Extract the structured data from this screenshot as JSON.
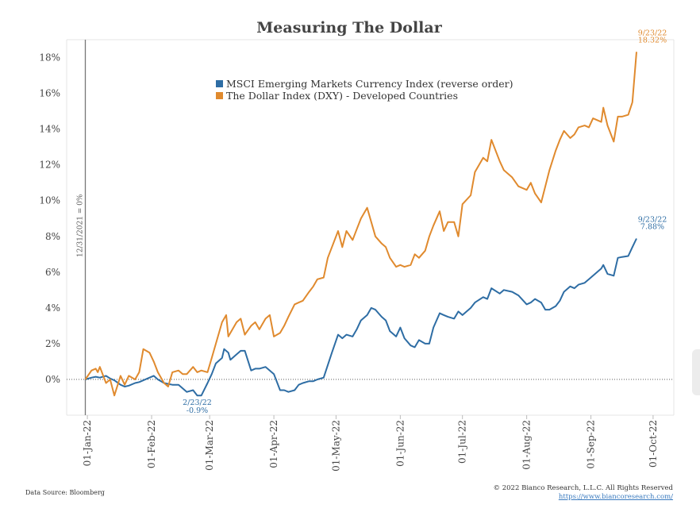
{
  "chart_data": {
    "type": "line",
    "title": "Measuring The Dollar",
    "xlabel": "",
    "ylabel": "",
    "ylim": [
      -2,
      19
    ],
    "y_ticks": [
      "0%",
      "2%",
      "4%",
      "6%",
      "8%",
      "10%",
      "12%",
      "14%",
      "16%",
      "18%"
    ],
    "y_tick_values": [
      0,
      2,
      4,
      6,
      8,
      10,
      12,
      14,
      16,
      18
    ],
    "x_ticks": [
      "01-Jan-22",
      "01-Feb-22",
      "01-Mar-22",
      "01-Apr-22",
      "01-May-22",
      "01-Jun-22",
      "01-Jul-22",
      "01-Aug-22",
      "01-Sep-22",
      "01-Oct-22"
    ],
    "x_tick_dates": [
      "2022-01-01",
      "2022-02-01",
      "2022-03-01",
      "2022-04-01",
      "2022-05-01",
      "2022-06-01",
      "2022-07-01",
      "2022-08-01",
      "2022-09-01",
      "2022-10-01"
    ],
    "xlim": [
      "2021-12-22",
      "2022-10-11"
    ],
    "legend_position": "top-center",
    "grid": "off",
    "zero_line": "dotted",
    "series": [
      {
        "name": "MSCI Emerging Markets Currency Index (reverse order)",
        "color": "#2e6da4",
        "points": [
          [
            "2021-12-31",
            0.0
          ],
          [
            "2022-01-03",
            0.1
          ],
          [
            "2022-01-05",
            0.15
          ],
          [
            "2022-01-07",
            0.1
          ],
          [
            "2022-01-10",
            0.2
          ],
          [
            "2022-01-12",
            0.05
          ],
          [
            "2022-01-14",
            -0.05
          ],
          [
            "2022-01-17",
            -0.3
          ],
          [
            "2022-01-19",
            -0.4
          ],
          [
            "2022-01-21",
            -0.35
          ],
          [
            "2022-01-24",
            -0.2
          ],
          [
            "2022-01-26",
            -0.15
          ],
          [
            "2022-01-28",
            -0.05
          ],
          [
            "2022-01-31",
            0.1
          ],
          [
            "2022-02-02",
            0.2
          ],
          [
            "2022-02-04",
            0.0
          ],
          [
            "2022-02-07",
            -0.2
          ],
          [
            "2022-02-09",
            -0.25
          ],
          [
            "2022-02-11",
            -0.3
          ],
          [
            "2022-02-14",
            -0.3
          ],
          [
            "2022-02-16",
            -0.5
          ],
          [
            "2022-02-18",
            -0.7
          ],
          [
            "2022-02-21",
            -0.6
          ],
          [
            "2022-02-23",
            -0.9
          ],
          [
            "2022-02-25",
            -0.9
          ],
          [
            "2022-02-28",
            -0.2
          ],
          [
            "2022-03-02",
            0.3
          ],
          [
            "2022-03-04",
            0.9
          ],
          [
            "2022-03-07",
            1.2
          ],
          [
            "2022-03-08",
            1.7
          ],
          [
            "2022-03-10",
            1.5
          ],
          [
            "2022-03-11",
            1.1
          ],
          [
            "2022-03-14",
            1.4
          ],
          [
            "2022-03-16",
            1.6
          ],
          [
            "2022-03-18",
            1.6
          ],
          [
            "2022-03-21",
            0.5
          ],
          [
            "2022-03-23",
            0.6
          ],
          [
            "2022-03-25",
            0.6
          ],
          [
            "2022-03-28",
            0.7
          ],
          [
            "2022-03-30",
            0.5
          ],
          [
            "2022-04-01",
            0.3
          ],
          [
            "2022-04-04",
            -0.6
          ],
          [
            "2022-04-06",
            -0.6
          ],
          [
            "2022-04-08",
            -0.7
          ],
          [
            "2022-04-11",
            -0.6
          ],
          [
            "2022-04-13",
            -0.3
          ],
          [
            "2022-04-15",
            -0.2
          ],
          [
            "2022-04-18",
            -0.1
          ],
          [
            "2022-04-20",
            -0.1
          ],
          [
            "2022-04-22",
            0.0
          ],
          [
            "2022-04-25",
            0.1
          ],
          [
            "2022-04-27",
            0.8
          ],
          [
            "2022-04-29",
            1.5
          ],
          [
            "2022-05-02",
            2.5
          ],
          [
            "2022-05-04",
            2.3
          ],
          [
            "2022-05-06",
            2.5
          ],
          [
            "2022-05-09",
            2.4
          ],
          [
            "2022-05-11",
            2.8
          ],
          [
            "2022-05-13",
            3.3
          ],
          [
            "2022-05-16",
            3.6
          ],
          [
            "2022-05-18",
            4.0
          ],
          [
            "2022-05-20",
            3.9
          ],
          [
            "2022-05-23",
            3.5
          ],
          [
            "2022-05-25",
            3.3
          ],
          [
            "2022-05-27",
            2.7
          ],
          [
            "2022-05-30",
            2.4
          ],
          [
            "2022-06-01",
            2.9
          ],
          [
            "2022-06-03",
            2.3
          ],
          [
            "2022-06-06",
            1.9
          ],
          [
            "2022-06-08",
            1.8
          ],
          [
            "2022-06-10",
            2.2
          ],
          [
            "2022-06-13",
            2.0
          ],
          [
            "2022-06-15",
            2.0
          ],
          [
            "2022-06-17",
            2.9
          ],
          [
            "2022-06-20",
            3.7
          ],
          [
            "2022-06-22",
            3.6
          ],
          [
            "2022-06-24",
            3.5
          ],
          [
            "2022-06-27",
            3.4
          ],
          [
            "2022-06-29",
            3.8
          ],
          [
            "2022-07-01",
            3.6
          ],
          [
            "2022-07-05",
            4.0
          ],
          [
            "2022-07-07",
            4.3
          ],
          [
            "2022-07-11",
            4.6
          ],
          [
            "2022-07-13",
            4.5
          ],
          [
            "2022-07-15",
            5.1
          ],
          [
            "2022-07-19",
            4.8
          ],
          [
            "2022-07-21",
            5.0
          ],
          [
            "2022-07-25",
            4.9
          ],
          [
            "2022-07-28",
            4.7
          ],
          [
            "2022-08-01",
            4.2
          ],
          [
            "2022-08-03",
            4.3
          ],
          [
            "2022-08-05",
            4.5
          ],
          [
            "2022-08-08",
            4.3
          ],
          [
            "2022-08-10",
            3.9
          ],
          [
            "2022-08-12",
            3.9
          ],
          [
            "2022-08-15",
            4.1
          ],
          [
            "2022-08-17",
            4.4
          ],
          [
            "2022-08-19",
            4.9
          ],
          [
            "2022-08-22",
            5.2
          ],
          [
            "2022-08-24",
            5.1
          ],
          [
            "2022-08-26",
            5.3
          ],
          [
            "2022-08-29",
            5.4
          ],
          [
            "2022-08-31",
            5.6
          ],
          [
            "2022-09-02",
            5.8
          ],
          [
            "2022-09-06",
            6.2
          ],
          [
            "2022-09-07",
            6.4
          ],
          [
            "2022-09-09",
            5.9
          ],
          [
            "2022-09-12",
            5.8
          ],
          [
            "2022-09-14",
            6.8
          ],
          [
            "2022-09-16",
            6.85
          ],
          [
            "2022-09-19",
            6.9
          ],
          [
            "2022-09-21",
            7.4
          ],
          [
            "2022-09-23",
            7.88
          ]
        ]
      },
      {
        "name": "The Dollar Index (DXY) - Developed Countries",
        "color": "#e08a2e",
        "points": [
          [
            "2021-12-31",
            0.0
          ],
          [
            "2022-01-03",
            0.5
          ],
          [
            "2022-01-05",
            0.6
          ],
          [
            "2022-01-06",
            0.4
          ],
          [
            "2022-01-07",
            0.7
          ],
          [
            "2022-01-10",
            -0.2
          ],
          [
            "2022-01-12",
            0.0
          ],
          [
            "2022-01-14",
            -0.9
          ],
          [
            "2022-01-17",
            0.2
          ],
          [
            "2022-01-19",
            -0.3
          ],
          [
            "2022-01-21",
            0.2
          ],
          [
            "2022-01-24",
            0.0
          ],
          [
            "2022-01-26",
            0.4
          ],
          [
            "2022-01-28",
            1.7
          ],
          [
            "2022-01-31",
            1.5
          ],
          [
            "2022-02-02",
            1.0
          ],
          [
            "2022-02-04",
            0.4
          ],
          [
            "2022-02-07",
            -0.2
          ],
          [
            "2022-02-09",
            -0.4
          ],
          [
            "2022-02-11",
            0.4
          ],
          [
            "2022-02-14",
            0.5
          ],
          [
            "2022-02-16",
            0.3
          ],
          [
            "2022-02-18",
            0.3
          ],
          [
            "2022-02-21",
            0.7
          ],
          [
            "2022-02-23",
            0.4
          ],
          [
            "2022-02-25",
            0.5
          ],
          [
            "2022-02-28",
            0.4
          ],
          [
            "2022-03-02",
            1.2
          ],
          [
            "2022-03-04",
            2.0
          ],
          [
            "2022-03-07",
            3.2
          ],
          [
            "2022-03-09",
            3.6
          ],
          [
            "2022-03-10",
            2.4
          ],
          [
            "2022-03-14",
            3.2
          ],
          [
            "2022-03-16",
            3.4
          ],
          [
            "2022-03-18",
            2.5
          ],
          [
            "2022-03-21",
            3.0
          ],
          [
            "2022-03-23",
            3.2
          ],
          [
            "2022-03-25",
            2.8
          ],
          [
            "2022-03-28",
            3.4
          ],
          [
            "2022-03-30",
            3.6
          ],
          [
            "2022-04-01",
            2.4
          ],
          [
            "2022-04-04",
            2.6
          ],
          [
            "2022-04-06",
            3.0
          ],
          [
            "2022-04-08",
            3.5
          ],
          [
            "2022-04-11",
            4.2
          ],
          [
            "2022-04-13",
            4.3
          ],
          [
            "2022-04-15",
            4.4
          ],
          [
            "2022-04-18",
            4.9
          ],
          [
            "2022-04-20",
            5.2
          ],
          [
            "2022-04-22",
            5.6
          ],
          [
            "2022-04-25",
            5.7
          ],
          [
            "2022-04-27",
            6.8
          ],
          [
            "2022-04-29",
            7.4
          ],
          [
            "2022-05-02",
            8.3
          ],
          [
            "2022-05-04",
            7.4
          ],
          [
            "2022-05-06",
            8.3
          ],
          [
            "2022-05-09",
            7.8
          ],
          [
            "2022-05-11",
            8.4
          ],
          [
            "2022-05-13",
            9.0
          ],
          [
            "2022-05-16",
            9.6
          ],
          [
            "2022-05-18",
            8.8
          ],
          [
            "2022-05-20",
            8.0
          ],
          [
            "2022-05-23",
            7.6
          ],
          [
            "2022-05-25",
            7.4
          ],
          [
            "2022-05-27",
            6.8
          ],
          [
            "2022-05-30",
            6.3
          ],
          [
            "2022-06-01",
            6.4
          ],
          [
            "2022-06-03",
            6.3
          ],
          [
            "2022-06-06",
            6.4
          ],
          [
            "2022-06-08",
            7.0
          ],
          [
            "2022-06-10",
            6.8
          ],
          [
            "2022-06-13",
            7.2
          ],
          [
            "2022-06-15",
            8.0
          ],
          [
            "2022-06-17",
            8.6
          ],
          [
            "2022-06-20",
            9.4
          ],
          [
            "2022-06-22",
            8.3
          ],
          [
            "2022-06-24",
            8.8
          ],
          [
            "2022-06-27",
            8.8
          ],
          [
            "2022-06-29",
            8.0
          ],
          [
            "2022-07-01",
            9.8
          ],
          [
            "2022-07-05",
            10.3
          ],
          [
            "2022-07-07",
            11.6
          ],
          [
            "2022-07-11",
            12.4
          ],
          [
            "2022-07-13",
            12.2
          ],
          [
            "2022-07-15",
            13.4
          ],
          [
            "2022-07-19",
            12.2
          ],
          [
            "2022-07-21",
            11.7
          ],
          [
            "2022-07-25",
            11.3
          ],
          [
            "2022-07-28",
            10.8
          ],
          [
            "2022-08-01",
            10.6
          ],
          [
            "2022-08-03",
            11.0
          ],
          [
            "2022-08-05",
            10.4
          ],
          [
            "2022-08-08",
            9.9
          ],
          [
            "2022-08-10",
            10.8
          ],
          [
            "2022-08-12",
            11.7
          ],
          [
            "2022-08-15",
            12.8
          ],
          [
            "2022-08-17",
            13.4
          ],
          [
            "2022-08-19",
            13.9
          ],
          [
            "2022-08-22",
            13.5
          ],
          [
            "2022-08-24",
            13.7
          ],
          [
            "2022-08-26",
            14.1
          ],
          [
            "2022-08-29",
            14.2
          ],
          [
            "2022-08-31",
            14.1
          ],
          [
            "2022-09-02",
            14.6
          ],
          [
            "2022-09-06",
            14.4
          ],
          [
            "2022-09-07",
            15.2
          ],
          [
            "2022-09-09",
            14.2
          ],
          [
            "2022-09-12",
            13.3
          ],
          [
            "2022-09-14",
            14.7
          ],
          [
            "2022-09-16",
            14.7
          ],
          [
            "2022-09-19",
            14.8
          ],
          [
            "2022-09-21",
            15.5
          ],
          [
            "2022-09-23",
            18.32
          ]
        ]
      }
    ],
    "annotations": [
      {
        "text_lines": [
          "9/23/22",
          "18.32%"
        ],
        "series": 1,
        "date": "2022-09-23",
        "value": 18.32,
        "color": "#e08a2e",
        "placement": "above"
      },
      {
        "text_lines": [
          "9/23/22",
          "7.88%"
        ],
        "series": 0,
        "date": "2022-09-23",
        "value": 7.88,
        "color": "#2e6da4",
        "placement": "above"
      },
      {
        "text_lines": [
          "2/23/22",
          "-0.9%"
        ],
        "series": 0,
        "date": "2022-02-23",
        "value": -0.9,
        "color": "#2e6da4",
        "placement": "below"
      }
    ],
    "reference_line": {
      "date": "2021-12-31",
      "label": "12/31/2021 = 0%",
      "color": "#777777"
    }
  },
  "footer": {
    "source": "Data Source: Bloomberg",
    "copyright": "© 2022 Bianco Research, L.L.C. All Rights Reserved",
    "url": "https://www.biancoresearch.com/"
  },
  "colors": {
    "msci": "#2e6da4",
    "dxy": "#e08a2e",
    "axis": "#cccccc",
    "reference": "#777777"
  }
}
